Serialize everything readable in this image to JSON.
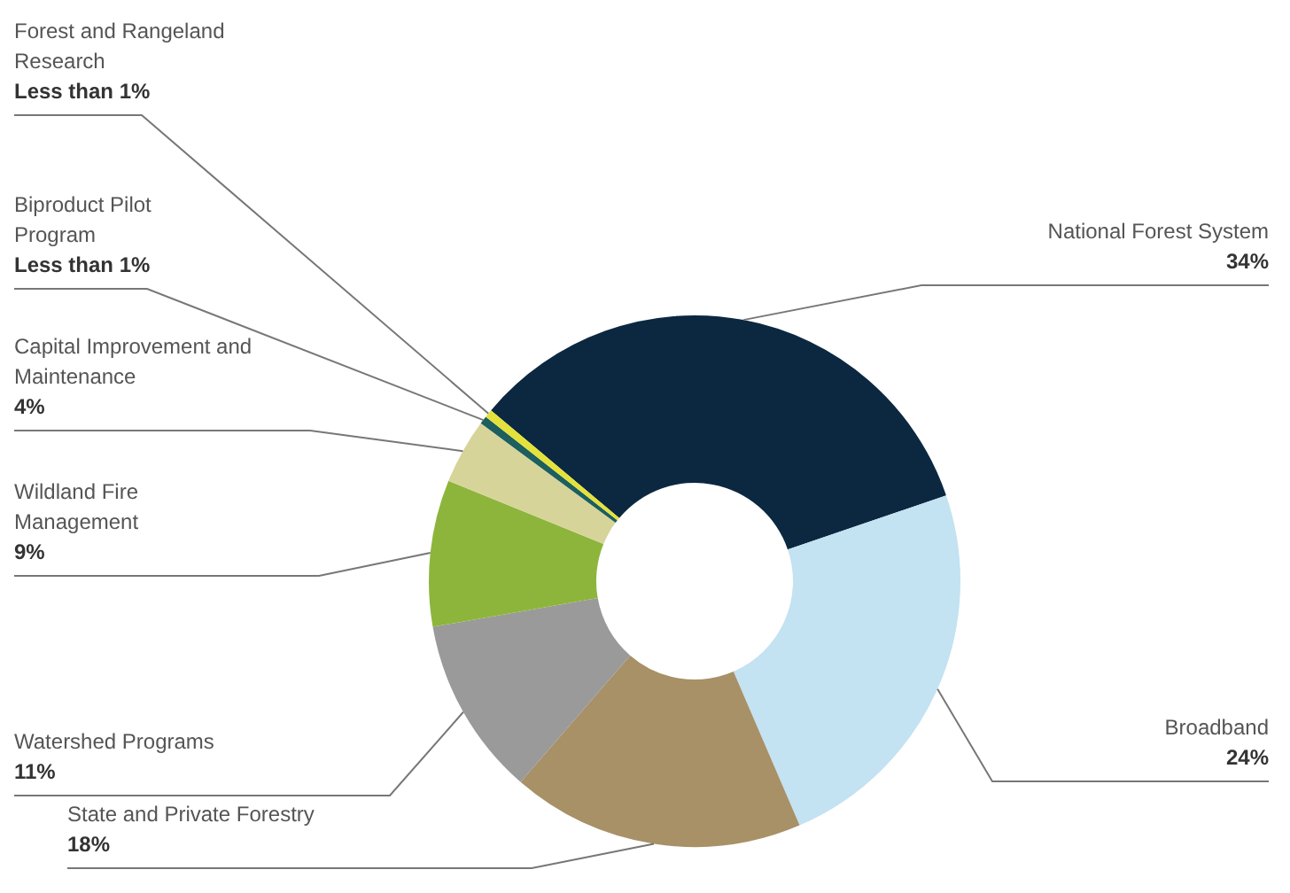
{
  "chart_data": {
    "type": "donut",
    "categories": [
      "National Forest System",
      "Broadband",
      "State and Private Forestry",
      "Watershed Programs",
      "Wildland Fire Management",
      "Capital Improvement and Maintenance",
      "Biproduct Pilot Program",
      "Forest and Rangeland Research"
    ],
    "values": [
      34,
      24,
      18,
      11,
      9,
      4,
      0.5,
      0.5
    ],
    "value_labels": [
      "34%",
      "24%",
      "18%",
      "11%",
      "9%",
      "4%",
      "Less than 1%",
      "Less than 1%"
    ],
    "colors": [
      "#0b2840",
      "#c3e2f2",
      "#a89067",
      "#9a9a9a",
      "#8db53c",
      "#d7d49a",
      "#1d5e5e",
      "#e4e23a"
    ],
    "legend": false
  }
}
